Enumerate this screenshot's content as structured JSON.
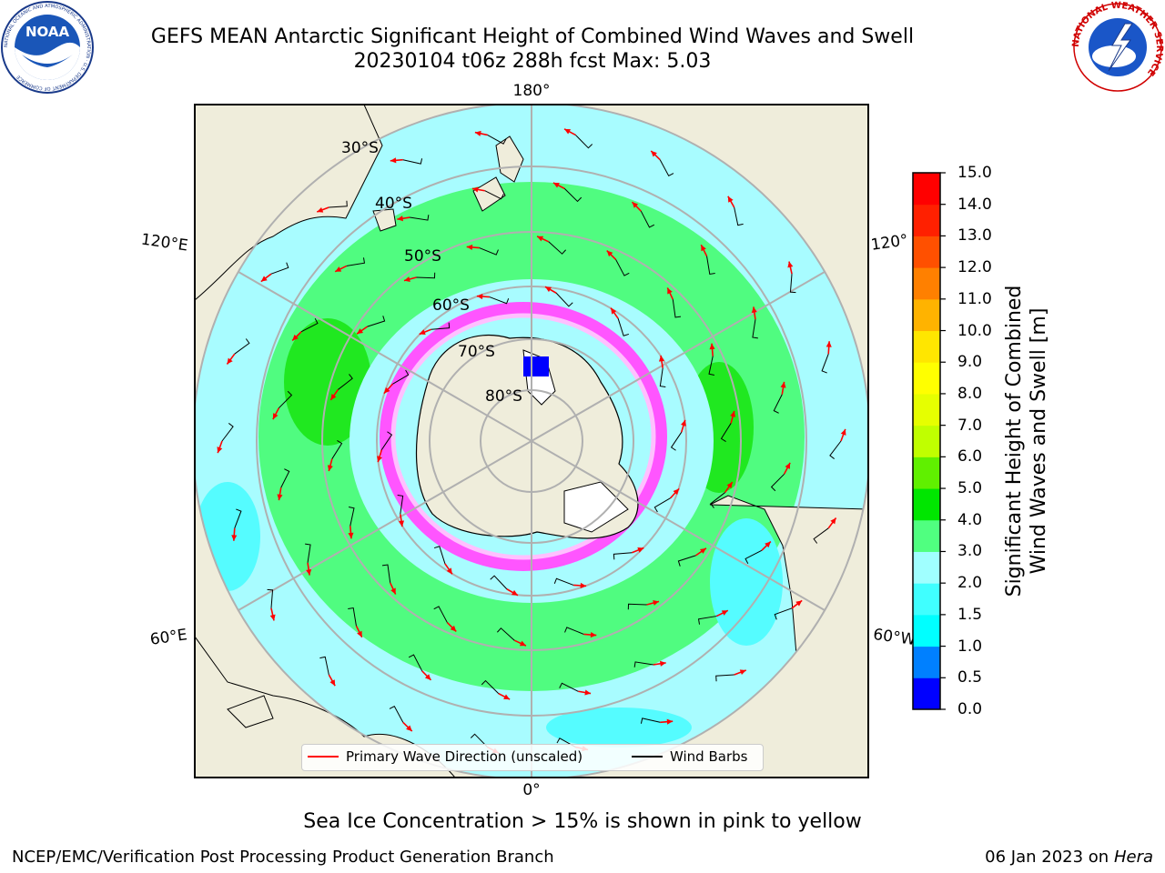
{
  "header": {
    "title_line1": "GEFS MEAN Antarctic Significant Height of Combined Wind Waves and Swell",
    "title_line2": "20230104 t06z 288h fcst   Max: 5.03",
    "left_logo_text": "NOAA",
    "left_logo_ring": "NATIONAL OCEANIC AND ATMOSPHERIC ADMINISTRATION · U.S. DEPARTMENT OF COMMERCE",
    "right_logo_ring": "NATIONAL WEATHER SERVICE"
  },
  "map": {
    "projection": "south-polar-stereographic",
    "longitude_labels": [
      "180°",
      "120°E",
      "120°",
      "60°E",
      "60°W",
      "0°"
    ],
    "latitude_labels": [
      "30°S",
      "40°S",
      "50°S",
      "60°S",
      "70°S",
      "80°S"
    ],
    "colors": {
      "land": "#efeddb",
      "ice": "#ff55ff",
      "wave_arrow": "#ff0000",
      "wind_barb": "#000000",
      "grid": "#b0b0b0"
    }
  },
  "legend": {
    "items": [
      {
        "label": "Primary Wave Direction (unscaled)",
        "color": "#ff0000"
      },
      {
        "label": "Wind Barbs",
        "color": "#000000"
      }
    ]
  },
  "colorbar": {
    "label_line1": "Significant Height of Combined",
    "label_line2": "Wind Waves and Swell [m]",
    "ticks": [
      "0.0",
      "0.5",
      "1.0",
      "1.5",
      "2.0",
      "3.0",
      "4.0",
      "5.0",
      "6.0",
      "7.0",
      "8.0",
      "9.0",
      "10.0",
      "11.0",
      "12.0",
      "13.0",
      "14.0",
      "15.0"
    ],
    "colors": [
      "#0000ff",
      "#0080ff",
      "#00ffff",
      "#40ffff",
      "#a0ffff",
      "#50ff80",
      "#00e600",
      "#60f000",
      "#c0ff00",
      "#e6ff00",
      "#ffff00",
      "#ffe600",
      "#ffb300",
      "#ff8000",
      "#ff5000",
      "#ff2000",
      "#ff0000"
    ]
  },
  "chart_data": {
    "type": "heatmap",
    "title": "GEFS MEAN Antarctic Significant Height of Combined Wind Waves and Swell",
    "subtitle": "20230104 t06z 288h fcst   Max: 5.03",
    "colorbar_range": [
      0,
      15
    ],
    "max_value": 5.03,
    "unit": "m",
    "latitude_circles": [
      -30,
      -40,
      -50,
      -60,
      -70,
      -80
    ],
    "meridian_spacing_deg": 60
  },
  "footer": {
    "note": "Sea Ice Concentration > 15% is shown in pink to yellow",
    "credit": "NCEP/EMC/Verification Post Processing Product Generation Branch",
    "date": "06 Jan 2023 on",
    "machine": "Hera"
  }
}
